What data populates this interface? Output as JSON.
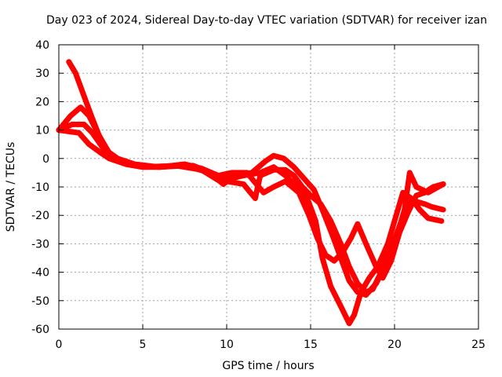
{
  "chart_data": {
    "type": "scatter",
    "title": "Day 023 of 2024, Sidereal Day-to-day VTEC variation (SDTVAR) for receiver izan",
    "xlabel": "GPS time / hours",
    "ylabel": "SDTVAR / TECUs",
    "xlim": [
      0,
      25
    ],
    "ylim": [
      -60,
      40
    ],
    "xticks": [
      0,
      5,
      10,
      15,
      20,
      25
    ],
    "yticks": [
      -60,
      -50,
      -40,
      -30,
      -20,
      -10,
      0,
      10,
      20,
      30,
      40
    ],
    "grid": true,
    "marker": "+",
    "color": "#ff0000",
    "series": [
      {
        "name": "track-1",
        "points": [
          [
            0.0,
            10
          ],
          [
            0.6,
            9.5
          ],
          [
            1.2,
            9
          ],
          [
            1.8,
            5
          ],
          [
            2.5,
            2
          ],
          [
            3.0,
            0
          ],
          [
            4.0,
            -2
          ],
          [
            5.0,
            -3
          ],
          [
            6.0,
            -3
          ],
          [
            7.0,
            -2.5
          ],
          [
            8.0,
            -2.5
          ],
          [
            9.0,
            -5
          ],
          [
            9.8,
            -9
          ],
          [
            10.3,
            -7
          ],
          [
            11.0,
            -6
          ],
          [
            12.0,
            -5
          ],
          [
            12.8,
            -3
          ],
          [
            13.5,
            -6
          ],
          [
            14.2,
            -10
          ],
          [
            14.8,
            -14
          ],
          [
            15.3,
            -22
          ],
          [
            15.7,
            -35
          ],
          [
            16.2,
            -45
          ],
          [
            16.8,
            -52
          ],
          [
            17.3,
            -58
          ],
          [
            17.6,
            -55
          ],
          [
            18.0,
            -47
          ],
          [
            18.5,
            -42
          ],
          [
            19.0,
            -38
          ],
          [
            19.6,
            -30
          ],
          [
            20.1,
            -20
          ],
          [
            20.5,
            -12
          ],
          [
            21.0,
            -14
          ],
          [
            21.5,
            -18
          ],
          [
            22.0,
            -21
          ],
          [
            22.8,
            -22
          ]
        ]
      },
      {
        "name": "track-2",
        "points": [
          [
            0.0,
            10
          ],
          [
            0.7,
            15
          ],
          [
            1.3,
            18
          ],
          [
            1.8,
            15
          ],
          [
            2.4,
            8
          ],
          [
            3.0,
            2
          ],
          [
            4.0,
            -2
          ],
          [
            5.0,
            -3
          ],
          [
            7.0,
            -2.5
          ],
          [
            8.5,
            -4
          ],
          [
            9.6,
            -8
          ],
          [
            10.5,
            -6
          ],
          [
            11.5,
            -5
          ],
          [
            12.3,
            -1
          ],
          [
            12.8,
            1
          ],
          [
            13.4,
            0
          ],
          [
            14.0,
            -3
          ],
          [
            14.6,
            -7
          ],
          [
            15.2,
            -11
          ],
          [
            15.7,
            -18
          ],
          [
            16.3,
            -27
          ],
          [
            16.8,
            -35
          ],
          [
            17.3,
            -43
          ],
          [
            17.8,
            -47
          ],
          [
            18.3,
            -48
          ],
          [
            18.9,
            -44
          ],
          [
            19.4,
            -38
          ],
          [
            19.9,
            -30
          ],
          [
            20.4,
            -22
          ],
          [
            20.7,
            -16
          ],
          [
            21.2,
            -15
          ],
          [
            21.8,
            -16
          ],
          [
            22.2,
            -17
          ],
          [
            22.9,
            -18
          ]
        ]
      },
      {
        "name": "track-3",
        "points": [
          [
            0.6,
            34
          ],
          [
            1.0,
            30
          ],
          [
            1.5,
            22
          ],
          [
            2.0,
            14
          ],
          [
            2.4,
            8
          ],
          [
            2.8,
            3
          ],
          [
            3.5,
            0
          ],
          [
            4.5,
            -2
          ],
          [
            6.0,
            -3
          ],
          [
            7.5,
            -2.5
          ],
          [
            9.0,
            -5
          ],
          [
            10.0,
            -8
          ],
          [
            11.0,
            -9
          ],
          [
            11.7,
            -14
          ],
          [
            12.0,
            -6
          ],
          [
            12.8,
            -4
          ],
          [
            13.5,
            -4
          ],
          [
            14.0,
            -6
          ],
          [
            14.5,
            -10
          ],
          [
            15.0,
            -13
          ],
          [
            15.6,
            -16
          ],
          [
            16.2,
            -22
          ],
          [
            16.8,
            -30
          ],
          [
            17.3,
            -38
          ],
          [
            17.8,
            -44
          ],
          [
            18.3,
            -47
          ],
          [
            18.7,
            -46
          ],
          [
            19.2,
            -40
          ],
          [
            19.7,
            -33
          ],
          [
            20.2,
            -26
          ],
          [
            20.6,
            -18
          ],
          [
            20.9,
            -5
          ],
          [
            21.3,
            -10
          ],
          [
            22.0,
            -12
          ],
          [
            22.9,
            -9
          ]
        ]
      },
      {
        "name": "track-4",
        "points": [
          [
            0.0,
            10
          ],
          [
            0.8,
            12
          ],
          [
            1.5,
            12
          ],
          [
            2.0,
            9
          ],
          [
            2.6,
            4
          ],
          [
            3.2,
            0
          ],
          [
            4.5,
            -2.5
          ],
          [
            6.0,
            -3
          ],
          [
            7.5,
            -2
          ],
          [
            8.5,
            -3.5
          ],
          [
            9.5,
            -6
          ],
          [
            10.3,
            -5
          ],
          [
            11.2,
            -5
          ],
          [
            12.2,
            -12
          ],
          [
            12.8,
            -10
          ],
          [
            13.5,
            -8
          ],
          [
            14.3,
            -12
          ],
          [
            14.9,
            -20
          ],
          [
            15.4,
            -28
          ],
          [
            15.9,
            -34
          ],
          [
            16.4,
            -36
          ],
          [
            16.9,
            -33
          ],
          [
            17.4,
            -28
          ],
          [
            17.8,
            -23
          ],
          [
            18.3,
            -30
          ],
          [
            18.9,
            -38
          ],
          [
            19.3,
            -42
          ],
          [
            19.8,
            -36
          ],
          [
            20.3,
            -26
          ],
          [
            20.8,
            -19
          ],
          [
            21.3,
            -13
          ],
          [
            21.8,
            -12
          ],
          [
            22.3,
            -10
          ],
          [
            22.9,
            -9
          ]
        ]
      }
    ]
  }
}
